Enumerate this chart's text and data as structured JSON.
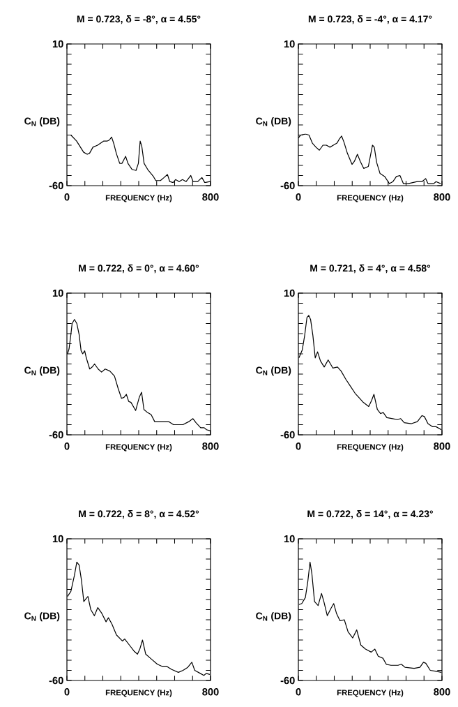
{
  "chart_data": [
    {
      "type": "line",
      "title": "M = 0.723, δ = -8°, α = 4.55°",
      "xlabel": "FREQUENCY (Hz)",
      "ylabel": "C$_{N}$ (DB)",
      "color": "#000000",
      "xlim": [
        0,
        800
      ],
      "ylim": [
        -60,
        10
      ],
      "xticks": [
        0,
        {
          "value": 100,
          "label": null
        },
        {
          "value": 200,
          "label": null
        },
        {
          "value": 300,
          "label": null
        },
        {
          "value": 400,
          "label": null
        },
        {
          "value": 500,
          "label": null
        },
        {
          "value": 600,
          "label": null
        },
        {
          "value": 700,
          "label": null
        },
        800
      ],
      "yticks": [
        -60,
        {
          "value": -55,
          "label": null
        },
        {
          "value": -50,
          "label": null
        },
        {
          "value": -45,
          "label": null
        },
        {
          "value": -40,
          "label": null
        },
        {
          "value": -35,
          "label": null
        },
        {
          "value": -30,
          "label": null
        },
        {
          "value": -25,
          "label": null
        },
        {
          "value": -20,
          "label": null
        },
        {
          "value": -15,
          "label": null
        },
        {
          "value": -10,
          "label": null
        },
        {
          "value": -5,
          "label": null
        },
        {
          "value": 0,
          "label": null
        },
        {
          "value": 5,
          "label": null
        },
        10
      ],
      "x": [
        3,
        22,
        54,
        93,
        113,
        126,
        145,
        171,
        204,
        223,
        236,
        249,
        262,
        275,
        294,
        307,
        327,
        340,
        363,
        385,
        398,
        408,
        417,
        430,
        450,
        482,
        495,
        521,
        541,
        560,
        573,
        592,
        605,
        625,
        644,
        664,
        690,
        703,
        729,
        752,
        768,
        797
      ],
      "values": [
        -35,
        -35,
        -38,
        -43.5,
        -44.5,
        -44,
        -41,
        -40,
        -38,
        -38,
        -37.5,
        -36,
        -39.5,
        -44,
        -49,
        -49,
        -45.5,
        -49,
        -52,
        -52.5,
        -49,
        -38,
        -40.5,
        -49,
        -52,
        -55.5,
        -57.5,
        -57.5,
        -56,
        -54.5,
        -58,
        -58.5,
        -57,
        -58,
        -57,
        -58,
        -55,
        -58,
        -58,
        -56,
        -58.5,
        -58
      ]
    },
    {
      "type": "line",
      "title": "M = 0.723, δ = -4°, α = 4.17°",
      "xlabel": "FREQUENCY (Hz)",
      "ylabel": "C$_{N}$ (DB)",
      "color": "#000000",
      "xlim": [
        0,
        800
      ],
      "ylim": [
        -60,
        10
      ],
      "xticks": [
        0,
        {
          "value": 100,
          "label": null
        },
        {
          "value": 200,
          "label": null
        },
        {
          "value": 300,
          "label": null
        },
        {
          "value": 400,
          "label": null
        },
        {
          "value": 500,
          "label": null
        },
        {
          "value": 600,
          "label": null
        },
        {
          "value": 700,
          "label": null
        },
        800
      ],
      "yticks": [
        -60,
        {
          "value": -55,
          "label": null
        },
        {
          "value": -50,
          "label": null
        },
        {
          "value": -45,
          "label": null
        },
        {
          "value": -40,
          "label": null
        },
        {
          "value": -35,
          "label": null
        },
        {
          "value": -30,
          "label": null
        },
        {
          "value": -25,
          "label": null
        },
        {
          "value": -20,
          "label": null
        },
        {
          "value": -15,
          "label": null
        },
        {
          "value": -10,
          "label": null
        },
        {
          "value": -5,
          "label": null
        },
        {
          "value": 0,
          "label": null
        },
        {
          "value": 5,
          "label": null
        },
        10
      ],
      "x": [
        0,
        13,
        39,
        59,
        78,
        98,
        117,
        137,
        156,
        176,
        195,
        215,
        228,
        241,
        254,
        273,
        299,
        312,
        329,
        345,
        364,
        390,
        413,
        423,
        436,
        455,
        481,
        507,
        527,
        546,
        566,
        585,
        611,
        637,
        663,
        689,
        709,
        722,
        754,
        767,
        793
      ],
      "values": [
        -36.5,
        -35,
        -34.5,
        -35,
        -39,
        -41,
        -42.5,
        -40,
        -40,
        -41,
        -40,
        -39,
        -37,
        -35.5,
        -38.5,
        -44,
        -49.5,
        -48,
        -44.5,
        -48,
        -51.5,
        -50.5,
        -40,
        -41,
        -48.5,
        -54,
        -55.5,
        -59,
        -58,
        -55.5,
        -55,
        -59,
        -59,
        -58.5,
        -58,
        -58,
        -56.5,
        -59,
        -59,
        -58,
        -59
      ]
    },
    {
      "type": "line",
      "title": "M = 0.722, δ = 0°, α = 4.60°",
      "xlabel": "FREQUENCY (Hz)",
      "ylabel": "C$_{N}$ (DB)",
      "color": "#000000",
      "xlim": [
        0,
        800
      ],
      "ylim": [
        -60,
        10
      ],
      "xticks": [
        0,
        {
          "value": 100,
          "label": null
        },
        {
          "value": 200,
          "label": null
        },
        {
          "value": 300,
          "label": null
        },
        {
          "value": 400,
          "label": null
        },
        {
          "value": 500,
          "label": null
        },
        {
          "value": 600,
          "label": null
        },
        {
          "value": 700,
          "label": null
        },
        800
      ],
      "yticks": [
        -60,
        {
          "value": -55,
          "label": null
        },
        {
          "value": -50,
          "label": null
        },
        {
          "value": -45,
          "label": null
        },
        {
          "value": -40,
          "label": null
        },
        {
          "value": -35,
          "label": null
        },
        {
          "value": -30,
          "label": null
        },
        {
          "value": -25,
          "label": null
        },
        {
          "value": -20,
          "label": null
        },
        {
          "value": -15,
          "label": null
        },
        {
          "value": -10,
          "label": null
        },
        {
          "value": -5,
          "label": null
        },
        {
          "value": 0,
          "label": null
        },
        {
          "value": 5,
          "label": null
        },
        10
      ],
      "x": [
        3,
        12,
        22,
        29,
        42,
        55,
        68,
        79,
        88,
        99,
        108,
        127,
        141,
        154,
        174,
        193,
        213,
        239,
        265,
        285,
        304,
        318,
        331,
        344,
        357,
        383,
        403,
        416,
        429,
        449,
        469,
        489,
        528,
        568,
        594,
        646,
        679,
        702,
        719,
        745,
        765,
        778,
        797
      ],
      "values": [
        -20,
        -17.5,
        -10.5,
        -5,
        -3,
        -5,
        -10.5,
        -18.5,
        -20,
        -18.5,
        -22,
        -27.5,
        -26.5,
        -25,
        -27.5,
        -29,
        -27.5,
        -28.5,
        -31,
        -37,
        -42,
        -41.5,
        -40,
        -43.5,
        -44,
        -48,
        -41.5,
        -39,
        -47.5,
        -49,
        -50,
        -53.5,
        -53.5,
        -53.5,
        -55,
        -55,
        -53.5,
        -52,
        -54,
        -56.5,
        -56.5,
        -57.5,
        -58
      ]
    },
    {
      "type": "line",
      "title": "M = 0.721, δ = 4°, α = 4.58°",
      "xlabel": "FREQUENCY (Hz)",
      "ylabel": "C$_{N}$ (DB)",
      "color": "#000000",
      "xlim": [
        0,
        800
      ],
      "ylim": [
        -60,
        10
      ],
      "xticks": [
        0,
        {
          "value": 100,
          "label": null
        },
        {
          "value": 200,
          "label": null
        },
        {
          "value": 300,
          "label": null
        },
        {
          "value": 400,
          "label": null
        },
        {
          "value": 500,
          "label": null
        },
        {
          "value": 600,
          "label": null
        },
        {
          "value": 700,
          "label": null
        },
        800
      ],
      "yticks": [
        -60,
        {
          "value": -55,
          "label": null
        },
        {
          "value": -50,
          "label": null
        },
        {
          "value": -45,
          "label": null
        },
        {
          "value": -40,
          "label": null
        },
        {
          "value": -35,
          "label": null
        },
        {
          "value": -30,
          "label": null
        },
        {
          "value": -25,
          "label": null
        },
        {
          "value": -20,
          "label": null
        },
        {
          "value": -15,
          "label": null
        },
        {
          "value": -10,
          "label": null
        },
        {
          "value": -5,
          "label": null
        },
        {
          "value": 0,
          "label": null
        },
        {
          "value": 5,
          "label": null
        },
        10
      ],
      "x": [
        3,
        22,
        35,
        48,
        58,
        68,
        81,
        94,
        107,
        123,
        144,
        166,
        192,
        218,
        238,
        264,
        290,
        316,
        342,
        362,
        392,
        408,
        421,
        440,
        458,
        473,
        493,
        525,
        552,
        570,
        590,
        630,
        663,
        689,
        702,
        722,
        748,
        767,
        797
      ],
      "values": [
        -22,
        -18,
        -11,
        -2,
        -1,
        -3,
        -11,
        -22,
        -19,
        -23.5,
        -26.5,
        -23,
        -27,
        -26.5,
        -28.5,
        -32.5,
        -36,
        -39.5,
        -42,
        -44,
        -46,
        -43,
        -40,
        -47.5,
        -49.5,
        -49,
        -51.5,
        -52,
        -52.5,
        -52,
        -54,
        -54.5,
        -53.5,
        -50.5,
        -51,
        -54.5,
        -56,
        -56,
        -57.5
      ]
    },
    {
      "type": "line",
      "title": "M = 0.722, δ = 8°, α = 4.52°",
      "xlabel": "FREQUENCY (Hz)",
      "ylabel": "C$_{N}$ (DB)",
      "color": "#000000",
      "xlim": [
        0,
        800
      ],
      "ylim": [
        -60,
        10
      ],
      "xticks": [
        0,
        {
          "value": 100,
          "label": null
        },
        {
          "value": 200,
          "label": null
        },
        {
          "value": 300,
          "label": null
        },
        {
          "value": 400,
          "label": null
        },
        {
          "value": 500,
          "label": null
        },
        {
          "value": 600,
          "label": null
        },
        {
          "value": 700,
          "label": null
        },
        800
      ],
      "yticks": [
        -60,
        {
          "value": -55,
          "label": null
        },
        {
          "value": -50,
          "label": null
        },
        {
          "value": -45,
          "label": null
        },
        {
          "value": -40,
          "label": null
        },
        {
          "value": -35,
          "label": null
        },
        {
          "value": -30,
          "label": null
        },
        {
          "value": -25,
          "label": null
        },
        {
          "value": -20,
          "label": null
        },
        {
          "value": -15,
          "label": null
        },
        {
          "value": -10,
          "label": null
        },
        {
          "value": -5,
          "label": null
        },
        {
          "value": 0,
          "label": null
        },
        {
          "value": 5,
          "label": null
        },
        10
      ],
      "x": [
        3,
        22,
        42,
        55,
        68,
        81,
        94,
        107,
        117,
        133,
        153,
        172,
        192,
        218,
        231,
        250,
        276,
        309,
        322,
        348,
        374,
        393,
        406,
        421,
        439,
        465,
        504,
        530,
        556,
        582,
        621,
        647,
        673,
        696,
        712,
        743,
        763,
        776,
        796
      ],
      "values": [
        -18.5,
        -16,
        -8,
        -1.5,
        -3,
        -10.5,
        -21,
        -19.5,
        -18.5,
        -25,
        -28,
        -24,
        -26.5,
        -31,
        -29,
        -32,
        -37.5,
        -40.5,
        -39.5,
        -42.5,
        -45.5,
        -47,
        -44.5,
        -40,
        -47,
        -49,
        -52,
        -53,
        -53,
        -54.5,
        -56,
        -55,
        -53.5,
        -51,
        -55,
        -56.5,
        -57.5,
        -56.5,
        -57
      ]
    },
    {
      "type": "line",
      "title": "M = 0.722, δ = 14°, α = 4.23°",
      "xlabel": "FREQUENCY (Hz)",
      "ylabel": "C$_{N}$ (DB)",
      "color": "#000000",
      "xlim": [
        0,
        800
      ],
      "ylim": [
        -60,
        10
      ],
      "xticks": [
        0,
        {
          "value": 100,
          "label": null
        },
        {
          "value": 200,
          "label": null
        },
        {
          "value": 300,
          "label": null
        },
        {
          "value": 400,
          "label": null
        },
        {
          "value": 500,
          "label": null
        },
        {
          "value": 600,
          "label": null
        },
        {
          "value": 700,
          "label": null
        },
        800
      ],
      "yticks": [
        -60,
        {
          "value": -55,
          "label": null
        },
        {
          "value": -50,
          "label": null
        },
        {
          "value": -45,
          "label": null
        },
        {
          "value": -40,
          "label": null
        },
        {
          "value": -35,
          "label": null
        },
        {
          "value": -30,
          "label": null
        },
        {
          "value": -25,
          "label": null
        },
        {
          "value": -20,
          "label": null
        },
        {
          "value": -15,
          "label": null
        },
        {
          "value": -10,
          "label": null
        },
        {
          "value": -5,
          "label": null
        },
        {
          "value": 0,
          "label": null
        },
        {
          "value": 5,
          "label": null
        },
        10
      ],
      "x": [
        3,
        19,
        39,
        52,
        65,
        75,
        90,
        110,
        129,
        142,
        161,
        181,
        197,
        213,
        232,
        256,
        277,
        303,
        325,
        348,
        374,
        406,
        426,
        445,
        471,
        490,
        516,
        555,
        574,
        594,
        645,
        677,
        697,
        710,
        735,
        768,
        797
      ],
      "values": [
        -22.5,
        -22,
        -19,
        -11.5,
        -1.5,
        -7,
        -21,
        -23,
        -17,
        -21,
        -28,
        -24.5,
        -22,
        -27,
        -30.5,
        -30,
        -36,
        -39,
        -35,
        -42.5,
        -44.5,
        -46,
        -44.5,
        -48,
        -49,
        -52,
        -52.5,
        -52.5,
        -52,
        -53.5,
        -54,
        -53.5,
        -51,
        -51.5,
        -55,
        -55.5,
        -56
      ]
    }
  ]
}
